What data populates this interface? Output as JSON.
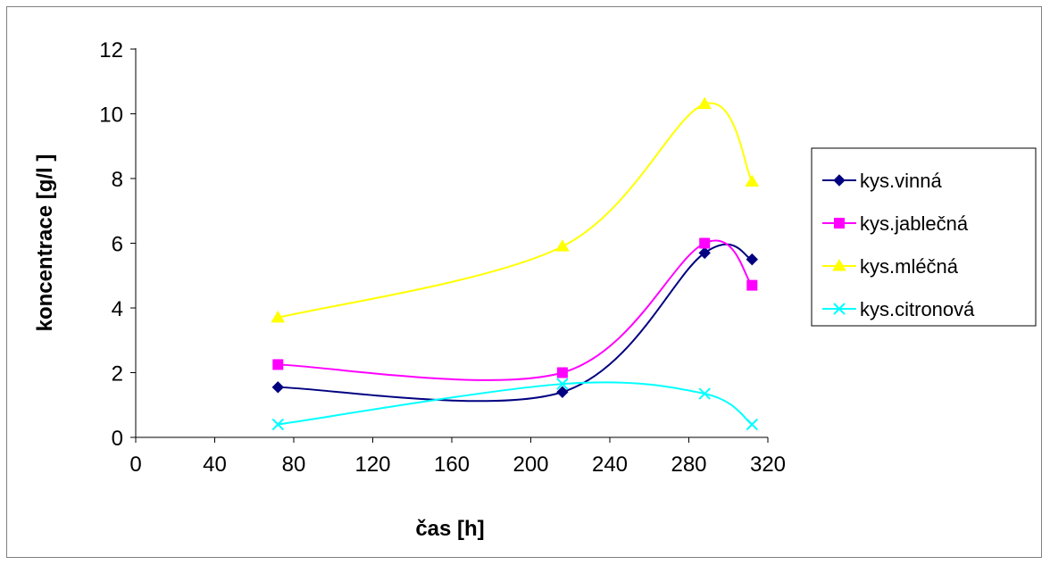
{
  "chart_data": {
    "type": "line",
    "title": "",
    "xlabel": "čas [h]",
    "ylabel": "koncentrace [g/l ]",
    "xlim": [
      0,
      320
    ],
    "ylim": [
      0,
      12
    ],
    "xticks": [
      "0",
      "40",
      "80",
      "120",
      "160",
      "200",
      "240",
      "280",
      "320"
    ],
    "yticks": [
      "0",
      "2",
      "4",
      "6",
      "8",
      "10",
      "12"
    ],
    "grid": false,
    "legend_position": "right",
    "x": [
      72,
      216,
      288,
      312
    ],
    "series": [
      {
        "name": "kys.vinná",
        "values": [
          1.55,
          1.4,
          5.7,
          5.5
        ],
        "color": "#000080",
        "marker": "diamond"
      },
      {
        "name": "kys.jablečná",
        "values": [
          2.25,
          2.0,
          6.0,
          4.7
        ],
        "color": "#FF00FF",
        "marker": "square"
      },
      {
        "name": "kys.mléčná",
        "values": [
          3.7,
          5.9,
          10.3,
          7.9
        ],
        "color": "#FFFF00",
        "marker": "triangle"
      },
      {
        "name": "kys.citronová",
        "values": [
          0.4,
          1.65,
          1.35,
          0.4
        ],
        "color": "#00FFFF",
        "marker": "x"
      }
    ]
  }
}
